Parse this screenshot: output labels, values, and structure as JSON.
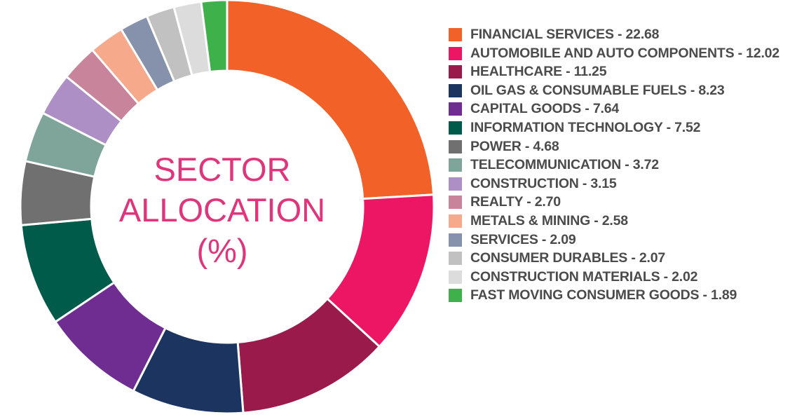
{
  "chart_data": {
    "type": "pie",
    "title": "SECTOR ALLOCATION (%)",
    "title_lines": [
      "SECTOR",
      "ALLOCATION",
      "(%)"
    ],
    "legend_position": "right",
    "slices": [
      {
        "label": "FINANCIAL SERVICES - 22.68",
        "name": "FINANCIAL SERVICES",
        "value": 22.68,
        "color": "#f26127"
      },
      {
        "label": "AUTOMOBILE AND AUTO COMPONENTS - 12.02",
        "name": "AUTOMOBILE AND AUTO COMPONENTS",
        "value": 12.02,
        "color": "#ec1664"
      },
      {
        "label": "HEALTHCARE - 11.25",
        "name": "HEALTHCARE",
        "value": 11.25,
        "color": "#9a1a4b"
      },
      {
        "label": "OIL GAS & CONSUMABLE FUELS - 8.23",
        "name": "OIL GAS & CONSUMABLE FUELS",
        "value": 8.23,
        "color": "#1c3460"
      },
      {
        "label": "CAPITAL GOODS - 7.64",
        "name": "CAPITAL GOODS",
        "value": 7.64,
        "color": "#6f2d91"
      },
      {
        "label": "INFORMATION TECHNOLOGY - 7.52",
        "name": "INFORMATION TECHNOLOGY",
        "value": 7.52,
        "color": "#005b4b"
      },
      {
        "label": "POWER - 4.68",
        "name": "POWER",
        "value": 4.68,
        "color": "#707070"
      },
      {
        "label": "TELECOMMUNICATION - 3.72",
        "name": "TELECOMMUNICATION",
        "value": 3.72,
        "color": "#7fa59a"
      },
      {
        "label": "CONSTRUCTION - 3.15",
        "name": "CONSTRUCTION",
        "value": 3.15,
        "color": "#ad8fc6"
      },
      {
        "label": "REALTY - 2.70",
        "name": "REALTY",
        "value": 2.7,
        "color": "#c8849b"
      },
      {
        "label": "METALS & MINING - 2.58",
        "name": "METALS & MINING",
        "value": 2.58,
        "color": "#f7a98b"
      },
      {
        "label": "SERVICES - 2.09",
        "name": "SERVICES",
        "value": 2.09,
        "color": "#8692ab"
      },
      {
        "label": "CONSUMER DURABLES - 2.07",
        "name": "CONSUMER DURABLES",
        "value": 2.07,
        "color": "#c1c1c1"
      },
      {
        "label": "CONSTRUCTION MATERIALS - 2.02",
        "name": "CONSTRUCTION MATERIALS",
        "value": 2.02,
        "color": "#dcdcdc"
      },
      {
        "label": "FAST MOVING CONSUMER GOODS - 1.89",
        "name": "FAST MOVING CONSUMER GOODS",
        "value": 1.89,
        "color": "#3fb14a"
      }
    ]
  }
}
